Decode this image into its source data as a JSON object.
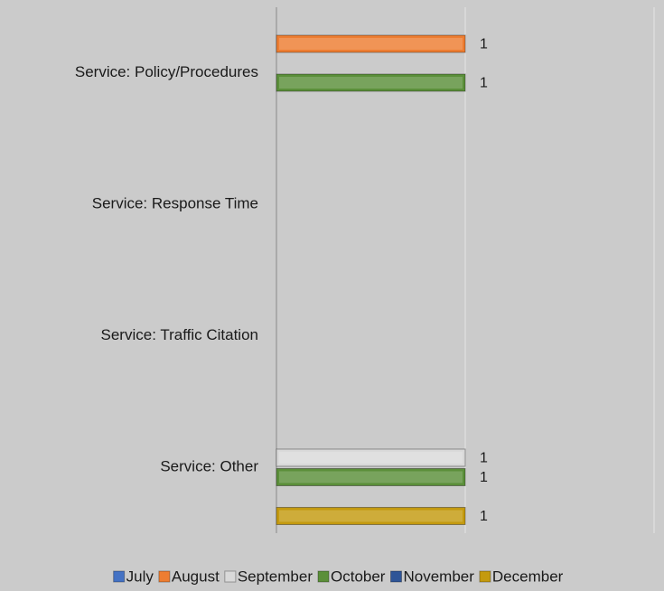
{
  "chart_data": {
    "type": "hbar",
    "categories": [
      "Service: Policy/Procedures",
      "Service: Response Time",
      "Service: Traffic Citation",
      "Service: Other"
    ],
    "series": [
      {
        "name": "July",
        "color": "#4472c4",
        "values": [
          null,
          null,
          null,
          null
        ]
      },
      {
        "name": "August",
        "color": "#ed7d31",
        "values": [
          1,
          null,
          null,
          null
        ]
      },
      {
        "name": "September",
        "color": "#d9d9d9",
        "values": [
          null,
          null,
          null,
          1
        ]
      },
      {
        "name": "October",
        "color": "#5b8f3a",
        "values": [
          1,
          null,
          null,
          1
        ]
      },
      {
        "name": "November",
        "color": "#2f5597",
        "values": [
          null,
          null,
          null,
          null
        ]
      },
      {
        "name": "December",
        "color": "#c49a0f",
        "values": [
          null,
          null,
          null,
          1
        ]
      }
    ],
    "xlim": [
      0,
      2
    ],
    "xticks": [
      0,
      1,
      2
    ],
    "xtick_labels": false,
    "grid": true,
    "legend": "bottom"
  }
}
